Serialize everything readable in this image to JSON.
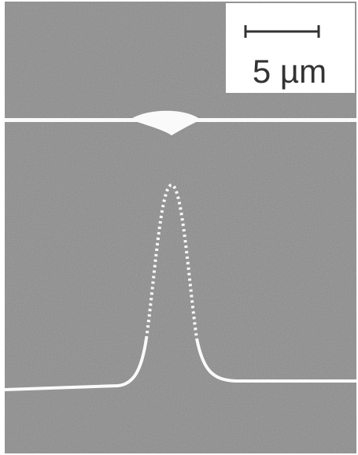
{
  "scale_bar": {
    "label": "5 µm"
  }
}
